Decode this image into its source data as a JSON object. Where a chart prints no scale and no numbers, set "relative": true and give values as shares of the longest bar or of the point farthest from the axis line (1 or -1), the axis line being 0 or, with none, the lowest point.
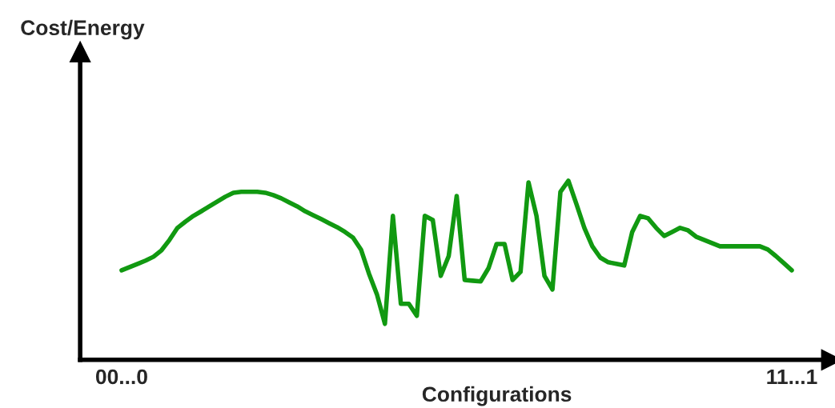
{
  "chart_data": {
    "type": "line",
    "relative": true,
    "annotations": [
      "Cost/Energy"
    ],
    "xlabel": "Configurations",
    "categories": [
      "00...0",
      null,
      null,
      null,
      null,
      null,
      null,
      null,
      null,
      null,
      null,
      null,
      null,
      null,
      null,
      null,
      null,
      null,
      null,
      null,
      null,
      null,
      null,
      null,
      null,
      null,
      null,
      null,
      null,
      null,
      null,
      null,
      null,
      null,
      null,
      null,
      null,
      null,
      null,
      null,
      null,
      null,
      null,
      null,
      null,
      null,
      null,
      null,
      null,
      null,
      null,
      null,
      null,
      null,
      null,
      null,
      null,
      null,
      null,
      null,
      null,
      null,
      null,
      null,
      null,
      null,
      null,
      null,
      null,
      null,
      null,
      null,
      null,
      null,
      null,
      null,
      null,
      null,
      null,
      null,
      null,
      null,
      null,
      null,
      "11...1"
    ],
    "tick_labels": "x",
    "legend": false,
    "marker": "none",
    "line_style": "solid",
    "series": [
      {
        "color": "#119911",
        "values": [
          0.5,
          0.518,
          0.536,
          0.554,
          0.576,
          0.612,
          0.67,
          0.737,
          0.772,
          0.804,
          0.83,
          0.857,
          0.884,
          0.911,
          0.933,
          0.938,
          0.938,
          0.938,
          0.933,
          0.92,
          0.902,
          0.879,
          0.857,
          0.83,
          0.808,
          0.786,
          0.763,
          0.741,
          0.714,
          0.683,
          0.616,
          0.482,
          0.366,
          0.201,
          0.804,
          0.313,
          0.313,
          0.246,
          0.804,
          0.781,
          0.469,
          0.58,
          0.915,
          0.446,
          0.442,
          0.438,
          0.513,
          0.647,
          0.647,
          0.446,
          0.491,
          0.991,
          0.804,
          0.469,
          0.393,
          0.938,
          1.0,
          0.871,
          0.737,
          0.634,
          0.571,
          0.545,
          0.536,
          0.527,
          0.714,
          0.804,
          0.79,
          0.737,
          0.692,
          0.714,
          0.737,
          0.723,
          0.688,
          0.67,
          0.652,
          0.634,
          0.634,
          0.634,
          0.634,
          0.634,
          0.634,
          0.616,
          0.58,
          0.54,
          0.5
        ]
      }
    ]
  }
}
